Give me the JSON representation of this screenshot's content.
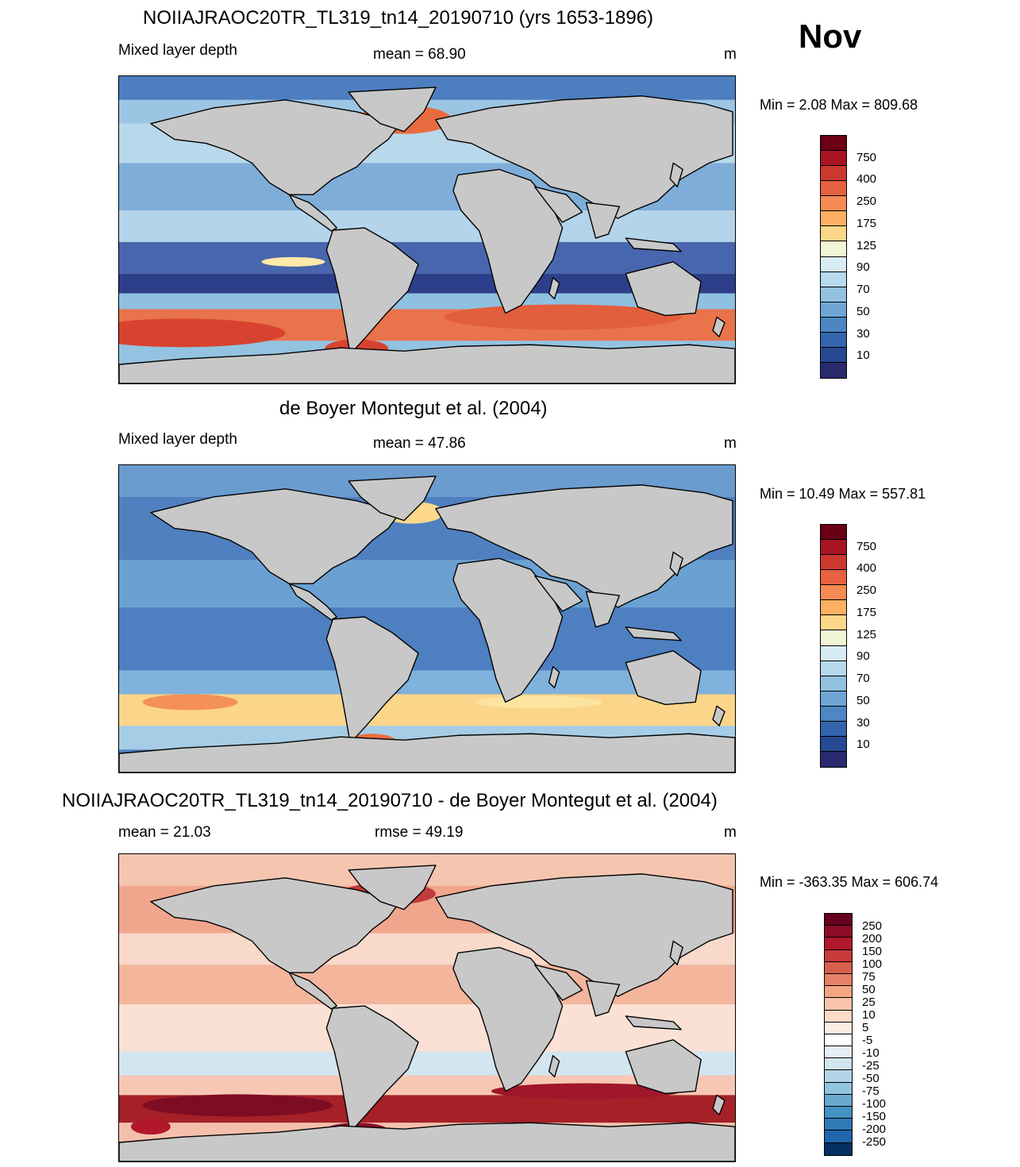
{
  "month": "Nov",
  "panels": [
    {
      "id": "model",
      "title": "NOIIAJRAOC20TR_TL319_tn14_20190710 (yrs 1653-1896)",
      "left_label": "Mixed layer depth",
      "center_label": "mean =  68.90",
      "right_label": "m",
      "minmax": "Min =   2.08 Max = 809.68",
      "colorbar": {
        "colors": [
          "#6b0015",
          "#a81422",
          "#cc3a2f",
          "#e6613f",
          "#f58a53",
          "#fbb064",
          "#fdd68a",
          "#f2f4d6",
          "#d7ecf5",
          "#b7d9ec",
          "#93c2e1",
          "#6fa6d4",
          "#4d86c2",
          "#3465ac",
          "#264993",
          "#2a2a6e"
        ],
        "labels": [
          "750",
          "400",
          "250",
          "175",
          "125",
          "90",
          "70",
          "50",
          "30",
          "10"
        ]
      }
    },
    {
      "id": "obs",
      "title": "de Boyer Montegut et al. (2004)",
      "left_label": "Mixed layer depth",
      "center_label": "mean =  47.86",
      "right_label": "m",
      "minmax": "Min =  10.49 Max = 557.81",
      "colorbar": {
        "colors": [
          "#6b0015",
          "#a81422",
          "#cc3a2f",
          "#e6613f",
          "#f58a53",
          "#fbb064",
          "#fdd68a",
          "#f2f4d6",
          "#d7ecf5",
          "#b7d9ec",
          "#93c2e1",
          "#6fa6d4",
          "#4d86c2",
          "#3465ac",
          "#264993",
          "#2a2a6e"
        ],
        "labels": [
          "750",
          "400",
          "250",
          "175",
          "125",
          "90",
          "70",
          "50",
          "30",
          "10"
        ]
      }
    },
    {
      "id": "diff",
      "title": "NOIIAJRAOC20TR_TL319_tn14_20190710 - de Boyer Montegut et al. (2004)",
      "left_label": "mean =  21.03",
      "center_label": "rmse =  49.19",
      "right_label": "m",
      "minmax": "Min = -363.35 Max = 606.74",
      "colorbar": {
        "colors": [
          "#67001f",
          "#8c0d25",
          "#b2182b",
          "#c83b3b",
          "#d6604d",
          "#e58267",
          "#f4a582",
          "#f8c4aa",
          "#fddbc7",
          "#fdeee4",
          "#ffffff",
          "#e6eff6",
          "#d1e5f0",
          "#b2d4e6",
          "#92c5de",
          "#6aa9d0",
          "#4393c3",
          "#3179b4",
          "#2166ac",
          "#053061"
        ],
        "labels": [
          "250",
          "200",
          "150",
          "100",
          "75",
          "50",
          "25",
          "10",
          "5",
          "-5",
          "-10",
          "-25",
          "-50",
          "-75",
          "-100",
          "-150",
          "-200",
          "-250"
        ]
      }
    }
  ]
}
